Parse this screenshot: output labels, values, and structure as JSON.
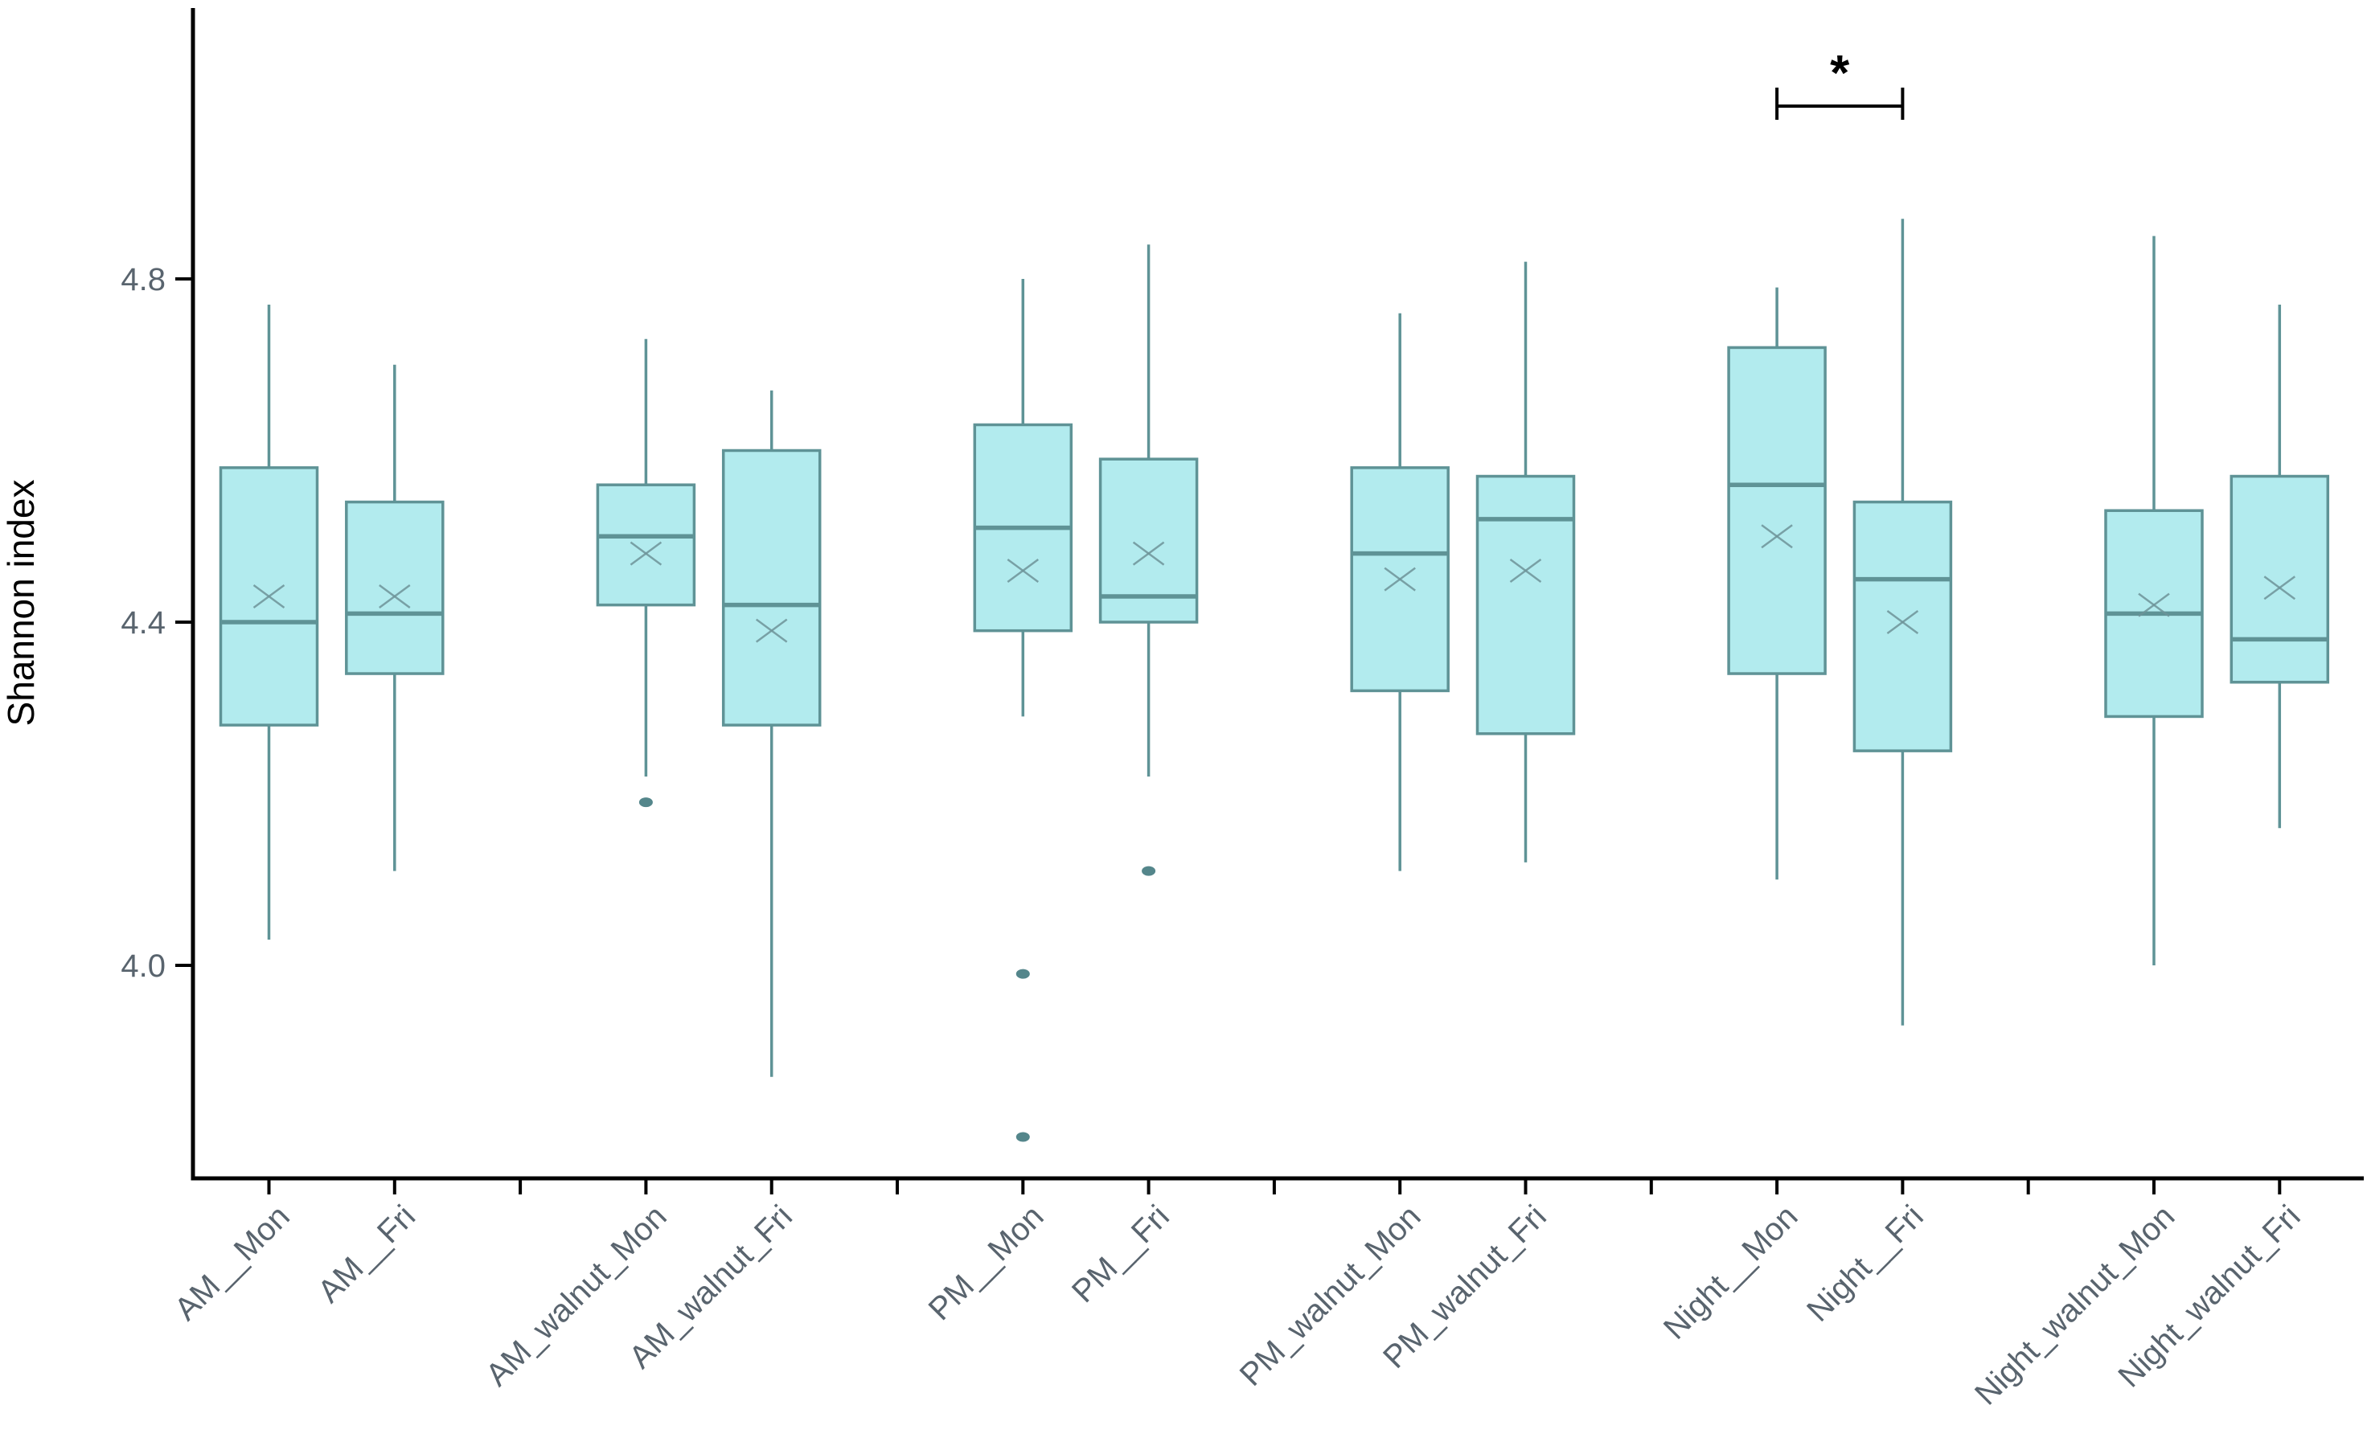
{
  "chart_data": {
    "type": "boxplot",
    "title": "",
    "xlabel": "",
    "ylabel": "Shannon index",
    "grid": "off",
    "legend": "none",
    "ylim": [
      3.75,
      5.11
    ],
    "y_ticks": [
      {
        "value": 4.0,
        "label": "4.0"
      },
      {
        "value": 4.4,
        "label": "4.4"
      },
      {
        "value": 4.8,
        "label": "4.8"
      }
    ],
    "categories": [
      "AM__Mon",
      "AM__Fri",
      "AM_walnut_Mon",
      "AM_walnut_Fri",
      "PM__Mon",
      "PM__Fri",
      "PM_walnut_Mon",
      "PM_walnut_Fri",
      "Night__Mon",
      "Night__Fri",
      "Night_walnut_Mon",
      "Night_walnut_Fri"
    ],
    "boxes": [
      {
        "label": "AM__Mon",
        "whisker_low": 4.03,
        "q1": 4.28,
        "median": 4.4,
        "mean": 4.43,
        "q3": 4.58,
        "whisker_high": 4.77,
        "outliers": []
      },
      {
        "label": "AM__Fri",
        "whisker_low": 4.11,
        "q1": 4.34,
        "median": 4.41,
        "mean": 4.43,
        "q3": 4.54,
        "whisker_high": 4.7,
        "outliers": []
      },
      {
        "label": "AM_walnut_Mon",
        "whisker_low": 4.22,
        "q1": 4.42,
        "median": 4.5,
        "mean": 4.48,
        "q3": 4.56,
        "whisker_high": 4.73,
        "outliers": [
          4.19
        ]
      },
      {
        "label": "AM_walnut_Fri",
        "whisker_low": 3.87,
        "q1": 4.28,
        "median": 4.42,
        "mean": 4.39,
        "q3": 4.6,
        "whisker_high": 4.67,
        "outliers": []
      },
      {
        "label": "PM__Mon",
        "whisker_low": 4.29,
        "q1": 4.39,
        "median": 4.51,
        "mean": 4.46,
        "q3": 4.63,
        "whisker_high": 4.8,
        "outliers": [
          3.99,
          3.8
        ]
      },
      {
        "label": "PM__Fri",
        "whisker_low": 4.22,
        "q1": 4.4,
        "median": 4.43,
        "mean": 4.48,
        "q3": 4.59,
        "whisker_high": 4.84,
        "outliers": [
          4.11
        ]
      },
      {
        "label": "PM_walnut_Mon",
        "whisker_low": 4.11,
        "q1": 4.32,
        "median": 4.48,
        "mean": 4.45,
        "q3": 4.58,
        "whisker_high": 4.76,
        "outliers": []
      },
      {
        "label": "PM_walnut_Fri",
        "whisker_low": 4.12,
        "q1": 4.27,
        "median": 4.52,
        "mean": 4.46,
        "q3": 4.57,
        "whisker_high": 4.82,
        "outliers": []
      },
      {
        "label": "Night__Mon",
        "whisker_low": 4.1,
        "q1": 4.34,
        "median": 4.56,
        "mean": 4.5,
        "q3": 4.72,
        "whisker_high": 4.79,
        "outliers": []
      },
      {
        "label": "Night__Fri",
        "whisker_low": 3.93,
        "q1": 4.25,
        "median": 4.45,
        "mean": 4.4,
        "q3": 4.54,
        "whisker_high": 4.87,
        "outliers": []
      },
      {
        "label": "Night_walnut_Mon",
        "whisker_low": 4.0,
        "q1": 4.29,
        "median": 4.41,
        "mean": 4.42,
        "q3": 4.53,
        "whisker_high": 4.85,
        "outliers": []
      },
      {
        "label": "Night_walnut_Fri",
        "whisker_low": 4.16,
        "q1": 4.33,
        "median": 4.38,
        "mean": 4.44,
        "q3": 4.57,
        "whisker_high": 4.77,
        "outliers": []
      }
    ],
    "significance_bracket": {
      "from": "Night__Mon",
      "to": "Night__Fri",
      "label": "*"
    },
    "colors": {
      "background": "#ffffff",
      "box_fill": "#b2ebee",
      "box_stroke": "#5f9396",
      "mean_marker": "#6e9499",
      "outlier": "#54868b",
      "axis": "#000000",
      "tick_label": "#59646e",
      "axis_title": "#000000",
      "bracket": "#000000"
    }
  }
}
